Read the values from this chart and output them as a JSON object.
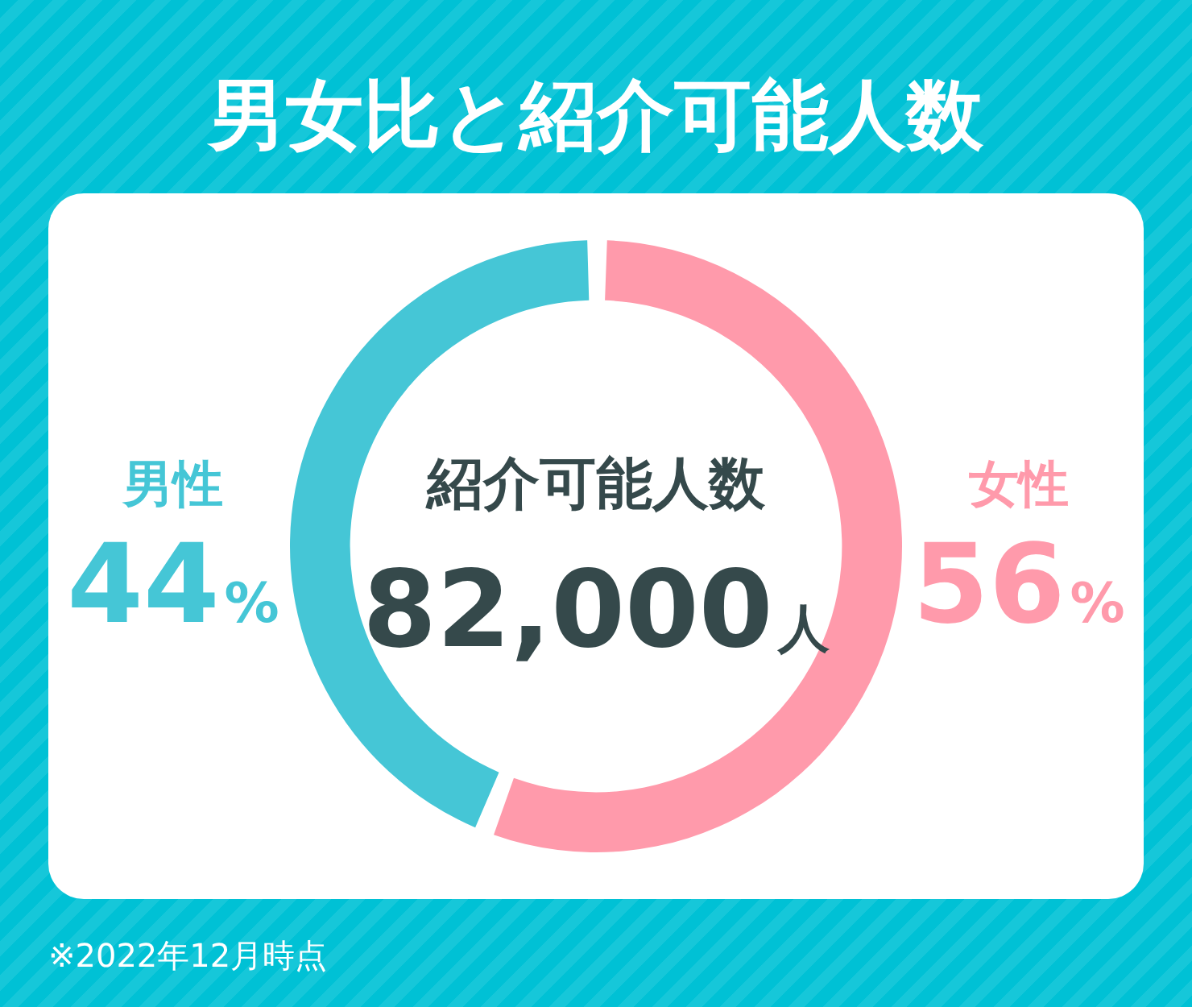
{
  "chart_data": {
    "type": "donut",
    "title": "男女比と紹介可能人数",
    "categories": [
      "女性",
      "男性"
    ],
    "values": [
      56,
      44
    ],
    "colors": [
      "#ff9aab",
      "#45c6d6"
    ],
    "value_labels": [
      "56%",
      "44%"
    ],
    "annotations": [
      "紹介可能人数",
      "82,000人",
      "※2022年12月時点"
    ]
  }
}
